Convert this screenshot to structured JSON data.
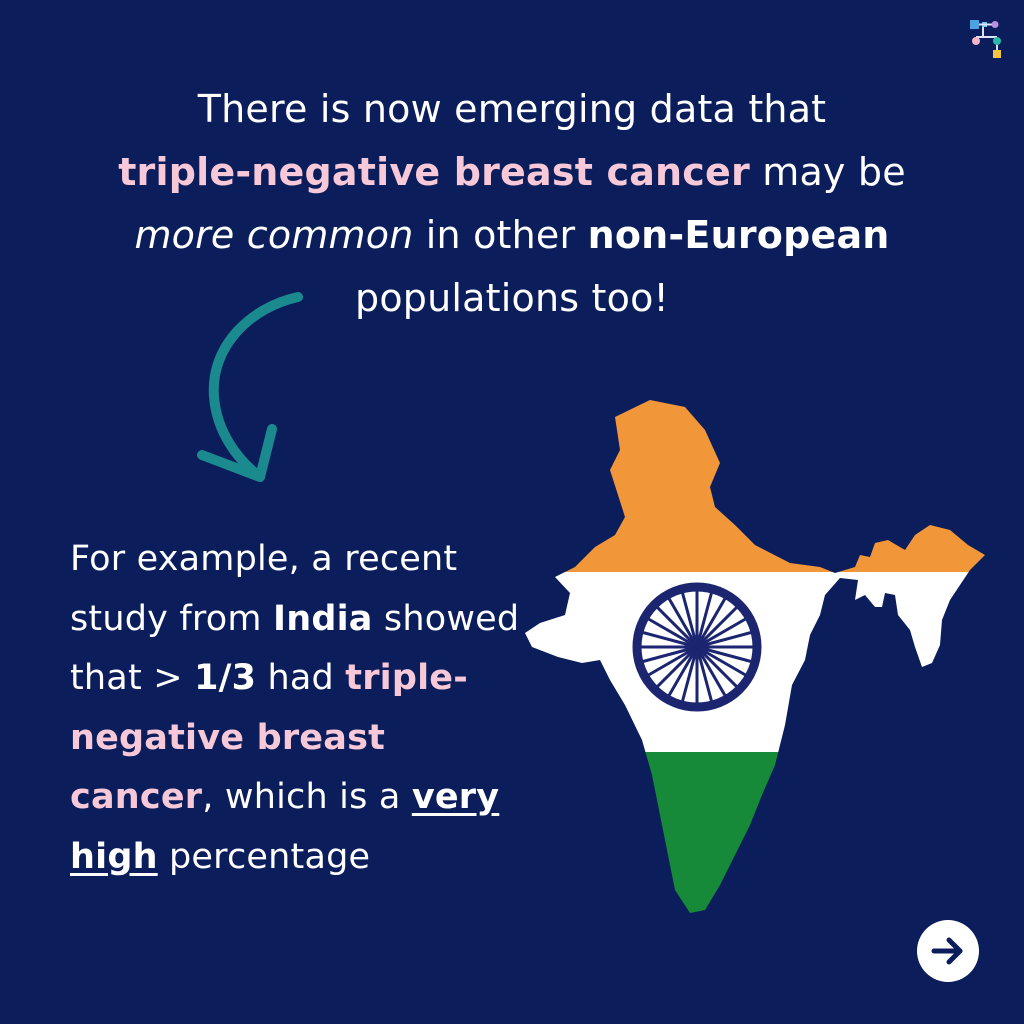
{
  "headline": {
    "part1": "There is now emerging data that",
    "highlight1": "triple-negative breast cancer",
    "part2": " may be",
    "italic": "more common",
    "part3": " in other ",
    "bold1": "non-European",
    "part4": "populations too!"
  },
  "body": {
    "p1": "For example, a recent study from ",
    "bold_country": "India",
    "p2": " showed that > ",
    "bold_fraction": "1/3",
    "p3": " had ",
    "highlight": "triple-negative breast cancer",
    "p4": ", which is a ",
    "underlined": "very high",
    "p5": " percentage"
  },
  "icons": {
    "arrow": "curved-arrow-icon",
    "map": "india-flag-map-icon",
    "next": "arrow-right-icon",
    "logo": "brand-logo-icon"
  },
  "colors": {
    "background": "#0b1d5b",
    "highlight": "#f7c9d8",
    "arrow": "#1a8a8f",
    "saffron": "#f29739",
    "green": "#178a3a",
    "chakra": "#1b2570"
  }
}
